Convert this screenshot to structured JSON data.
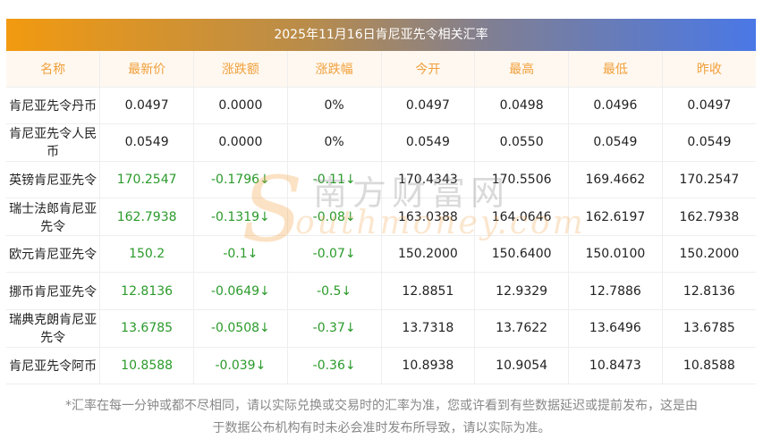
{
  "title": "2025年11月16日肯尼亚先令相关汇率",
  "headers": [
    "名称",
    "最新价",
    "涨跌额",
    "涨跌幅",
    "今开",
    "最高",
    "最低",
    "昨收"
  ],
  "rows": [
    [
      "肯尼亚先令丹币",
      "0.0497",
      "0.0000",
      "0%",
      "0.0497",
      "0.0498",
      "0.0496",
      "0.0497"
    ],
    [
      "肯尼亚先令人民币",
      "0.0549",
      "0.0000",
      "0%",
      "0.0549",
      "0.0550",
      "0.0549",
      "0.0549"
    ],
    [
      "英镑肯尼亚先令",
      "170.2547",
      "-0.1796↓",
      "-0.11↓",
      "170.4343",
      "170.5506",
      "169.4662",
      "170.2547"
    ],
    [
      "瑞士法郎肯尼亚先令",
      "162.7938",
      "-0.1319↓",
      "-0.08↓",
      "163.0388",
      "164.0646",
      "162.6197",
      "162.7938"
    ],
    [
      "欧元肯尼亚先令",
      "150.2",
      "-0.1↓",
      "-0.07↓",
      "150.2000",
      "150.6400",
      "150.0100",
      "150.2000"
    ],
    [
      "挪币肯尼亚先令",
      "12.8136",
      "-0.0649↓",
      "-0.5↓",
      "12.8851",
      "12.9329",
      "12.7886",
      "12.8136"
    ],
    [
      "瑞典克朗肯尼亚先令",
      "13.6785",
      "-0.0508↓",
      "-0.37↓",
      "13.7318",
      "13.7622",
      "13.6496",
      "13.6785"
    ],
    [
      "肯尼亚先令阿币",
      "10.8588",
      "-0.039↓",
      "-0.36↓",
      "10.8938",
      "10.9054",
      "10.8473",
      "10.8588"
    ]
  ],
  "green_rows": [
    2,
    3,
    4,
    5,
    6,
    7
  ],
  "colors": {
    "header_text": "#f0a03c",
    "down": "#2a9a2a",
    "banner_start": "#f29a10",
    "banner_end": "#4a78e6"
  },
  "watermark": {
    "cn": "南方财富网",
    "en": "outhmoney.com",
    "s": "S"
  },
  "footer": [
    "*汇率在每一分钟或都不尽相同，请以实际兑换或交易时的汇率为准，您或许看到有些数据延迟或提前发布，这是由",
    "于数据公布机构有时未必会准时发布所导致，请以实际为准。"
  ]
}
